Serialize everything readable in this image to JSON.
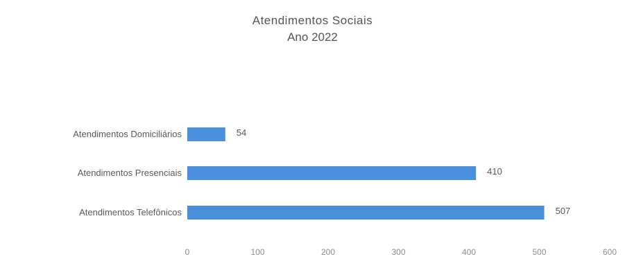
{
  "chart_data": {
    "type": "bar",
    "orientation": "horizontal",
    "title": "Atendimentos Sociais",
    "subtitle": "Ano 2022",
    "categories": [
      "Atendimentos Domiciliários",
      "Atendimentos Presenciais",
      "Atendimentos Telefônicos"
    ],
    "values": [
      54,
      410,
      507
    ],
    "xlim": [
      0,
      600
    ],
    "xticks": [
      0,
      100,
      200,
      300,
      400,
      500,
      600
    ],
    "grid": false,
    "legend": "none",
    "bar_color": "#4a8fdc"
  }
}
